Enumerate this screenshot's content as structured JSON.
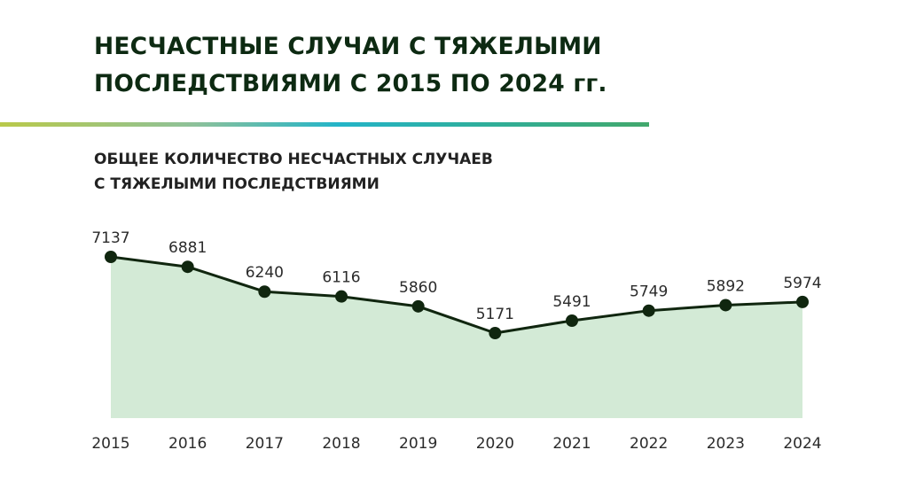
{
  "header": {
    "title_line1": "НЕСЧАСТНЫЕ СЛУЧАИ С ТЯЖЕЛЫМИ",
    "title_line2": "ПОСЛЕДСТВИЯМИ С 2015 ПО 2024 гг.",
    "subtitle_line1": "ОБЩЕЕ КОЛИЧЕСТВО НЕСЧАСТНЫХ СЛУЧАЕВ",
    "subtitle_line2": "С ТЯЖЕЛЫМИ ПОСЛЕДСТВИЯМИ"
  },
  "colors": {
    "title": "#0d2a12",
    "line": "#10260f",
    "area_fill": "#d3ead6",
    "text": "#2b2b2b"
  },
  "chart_data": {
    "type": "area",
    "title": "Несчастные случаи с тяжелыми последствиями с 2015 по 2024 гг.",
    "subtitle": "Общее количество несчастных случаев с тяжелыми последствиями",
    "categories": [
      "2015",
      "2016",
      "2017",
      "2018",
      "2019",
      "2020",
      "2021",
      "2022",
      "2023",
      "2024"
    ],
    "series": [
      {
        "name": "Общее количество несчастных случаев с тяжелыми последствиями",
        "values": [
          7137,
          6881,
          6240,
          6116,
          5860,
          5171,
          5491,
          5749,
          5892,
          5974
        ]
      }
    ],
    "xlabel": "",
    "ylabel": "",
    "grid": false,
    "legend": "none",
    "data_labels": true
  }
}
